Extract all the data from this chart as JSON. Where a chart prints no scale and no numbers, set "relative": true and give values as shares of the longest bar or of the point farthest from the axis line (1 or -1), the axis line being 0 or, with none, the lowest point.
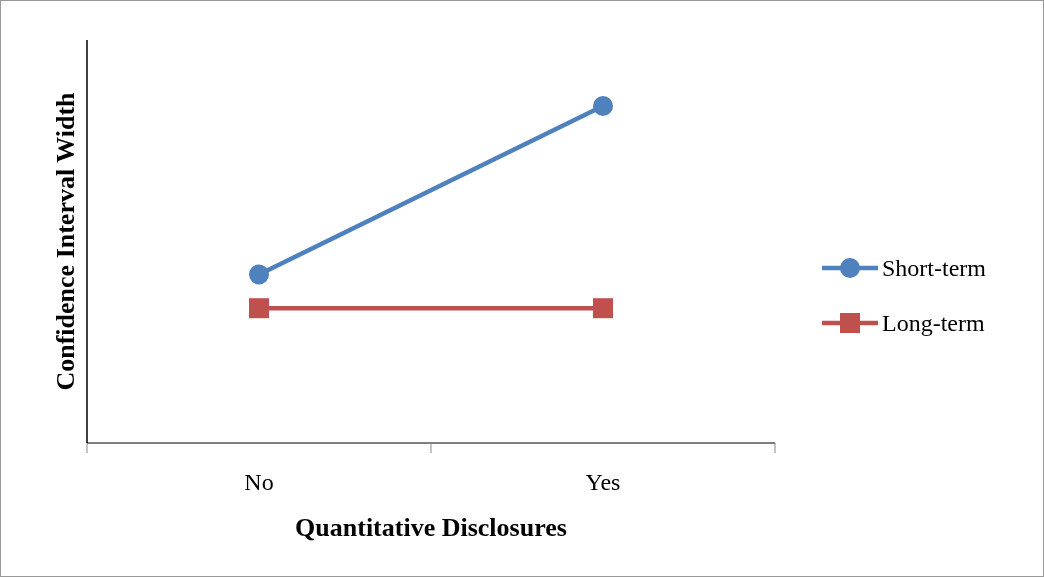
{
  "chart_data": {
    "type": "line",
    "xlabel": "Quantitative Disclosures",
    "ylabel": "Confidence Interval Width",
    "categories": [
      "No",
      "Yes"
    ],
    "relative": true,
    "legend": "right",
    "series": [
      {
        "name": "Short-term",
        "color": "#4f81bd",
        "marker": "circle",
        "values": [
          0.5,
          1
        ]
      },
      {
        "name": "Long-term",
        "color": "#c0504d",
        "marker": "square",
        "values": [
          0.4,
          0.4
        ]
      }
    ]
  }
}
